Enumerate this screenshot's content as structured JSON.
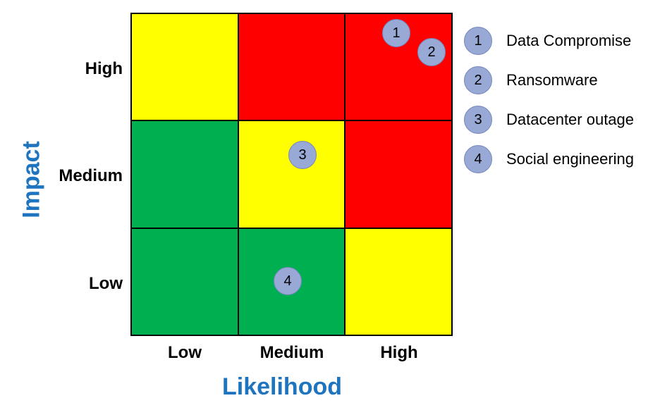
{
  "title_color": "#1f74c0",
  "marker_fill": "#98a9d6",
  "matrix": {
    "rows": [
      {
        "impact": "High",
        "cells": [
          "#ffff00",
          "#ff0000",
          "#ff0000"
        ]
      },
      {
        "impact": "Medium",
        "cells": [
          "#00b050",
          "#ffff00",
          "#ff0000"
        ]
      },
      {
        "impact": "Low",
        "cells": [
          "#00b050",
          "#00b050",
          "#ffff00"
        ]
      }
    ],
    "likelihood_labels": [
      "Low",
      "Medium",
      "High"
    ],
    "impact_labels": [
      "High",
      "Medium",
      "Low"
    ]
  },
  "axis": {
    "x_title": "Likelihood",
    "y_title": "Impact"
  },
  "risks": [
    {
      "id": "1",
      "label": "Data Compromise",
      "likelihood": "High",
      "impact": "High"
    },
    {
      "id": "2",
      "label": "Ransomware",
      "likelihood": "High",
      "impact": "High"
    },
    {
      "id": "3",
      "label": "Datacenter outage",
      "likelihood": "Medium",
      "impact": "Medium"
    },
    {
      "id": "4",
      "label": "Social engineering",
      "likelihood": "Medium",
      "impact": "Low"
    }
  ]
}
